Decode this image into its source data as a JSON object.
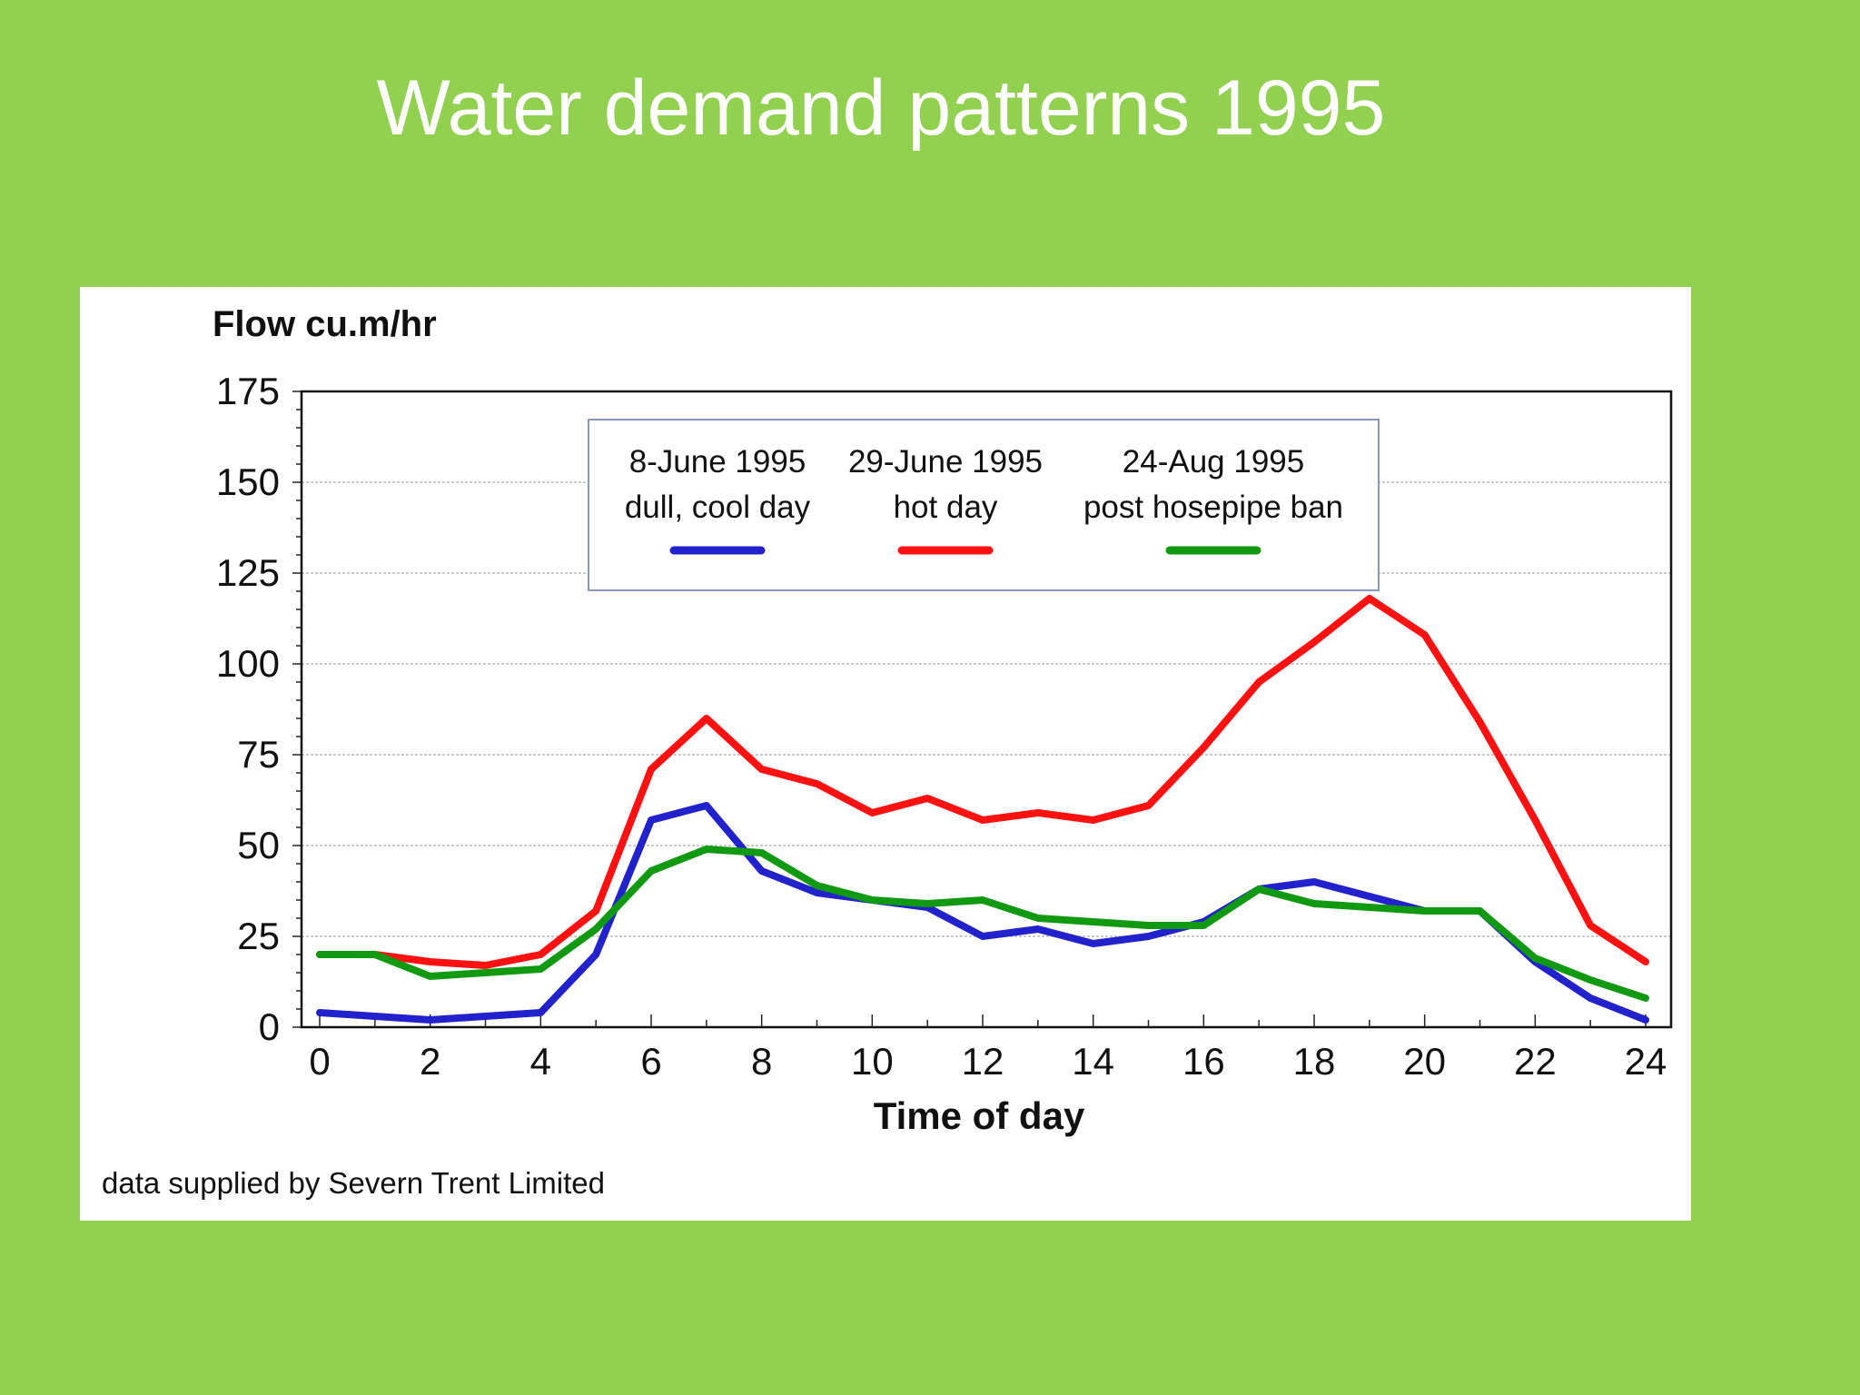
{
  "slide": {
    "title": "Water demand patterns 1995",
    "background_color": "#92d050"
  },
  "source_note": "data supplied by Severn Trent Limited",
  "chart_data": {
    "type": "line",
    "title": "",
    "ylabel": "Flow cu.m/hr",
    "xlabel": "Time of day",
    "xlim": [
      0,
      24
    ],
    "ylim": [
      0,
      175
    ],
    "x_ticks": [
      0,
      2,
      4,
      6,
      8,
      10,
      12,
      14,
      16,
      18,
      20,
      22,
      24
    ],
    "y_ticks": [
      0,
      25,
      50,
      75,
      100,
      125,
      150,
      175
    ],
    "grid": "horizontal",
    "legend_position": "top-center",
    "x": [
      0,
      1,
      2,
      3,
      4,
      5,
      6,
      7,
      8,
      9,
      10,
      11,
      12,
      13,
      14,
      15,
      16,
      17,
      18,
      19,
      20,
      21,
      22,
      23,
      24
    ],
    "series": [
      {
        "name": "8-June 1995",
        "name_line2": "dull, cool day",
        "color": "#2222cc",
        "values": [
          4,
          3,
          2,
          3,
          4,
          20,
          57,
          61,
          43,
          37,
          35,
          33,
          25,
          27,
          23,
          25,
          29,
          38,
          40,
          36,
          32,
          32,
          18,
          8,
          2
        ]
      },
      {
        "name": "29-June 1995",
        "name_line2": "hot day",
        "color": "#ff1111",
        "values": [
          20,
          20,
          18,
          17,
          20,
          32,
          71,
          85,
          71,
          67,
          59,
          63,
          57,
          59,
          57,
          61,
          77,
          95,
          106,
          118,
          108,
          84,
          57,
          28,
          18
        ]
      },
      {
        "name": "24-Aug 1995",
        "name_line2": "post hosepipe ban",
        "color": "#119911",
        "values": [
          20,
          20,
          14,
          15,
          16,
          27,
          43,
          49,
          48,
          39,
          35,
          34,
          35,
          30,
          29,
          28,
          28,
          38,
          34,
          33,
          32,
          32,
          19,
          13,
          8
        ]
      }
    ]
  }
}
